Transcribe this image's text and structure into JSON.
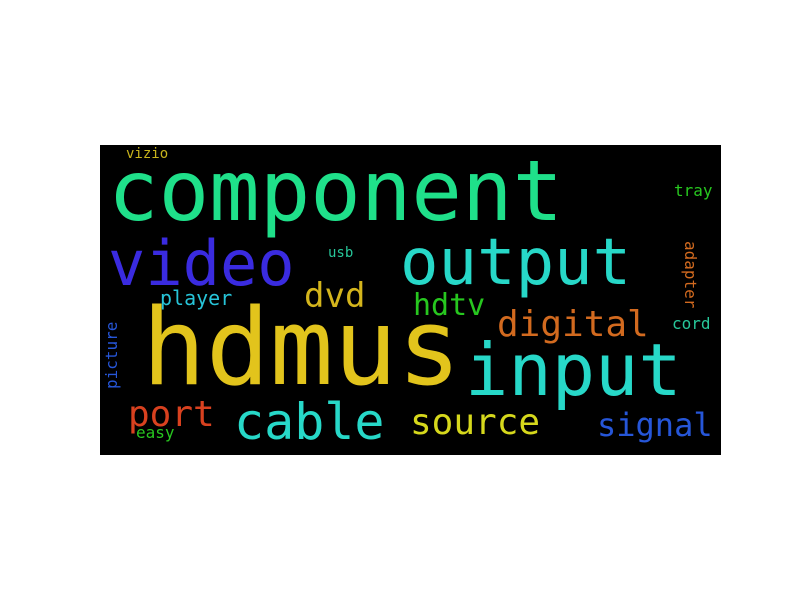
{
  "words": [
    {
      "text": "component",
      "color": "#1fe08a"
    },
    {
      "text": "hdmus",
      "color": "#e2c41c"
    },
    {
      "text": "input",
      "color": "#27d8c8"
    },
    {
      "text": "output",
      "color": "#27d8c8"
    },
    {
      "text": "video",
      "color": "#3a2be0"
    },
    {
      "text": "cable",
      "color": "#27d8c8"
    },
    {
      "text": "source",
      "color": "#d6d81c"
    },
    {
      "text": "digital",
      "color": "#d26a1f"
    },
    {
      "text": "port",
      "color": "#d8411f"
    },
    {
      "text": "signal",
      "color": "#2656d8"
    },
    {
      "text": "dvd",
      "color": "#d4b51c"
    },
    {
      "text": "hdtv",
      "color": "#27c71f"
    },
    {
      "text": "player",
      "color": "#27c4d8"
    },
    {
      "text": "vizio",
      "color": "#c8b41c"
    },
    {
      "text": "usb",
      "color": "#27c79a"
    },
    {
      "text": "tray",
      "color": "#27c71f"
    },
    {
      "text": "adapter",
      "color": "#d26a1f"
    },
    {
      "text": "cord",
      "color": "#27c79a"
    },
    {
      "text": "picture",
      "color": "#2656d8"
    },
    {
      "text": "easy",
      "color": "#27c71f"
    }
  ]
}
